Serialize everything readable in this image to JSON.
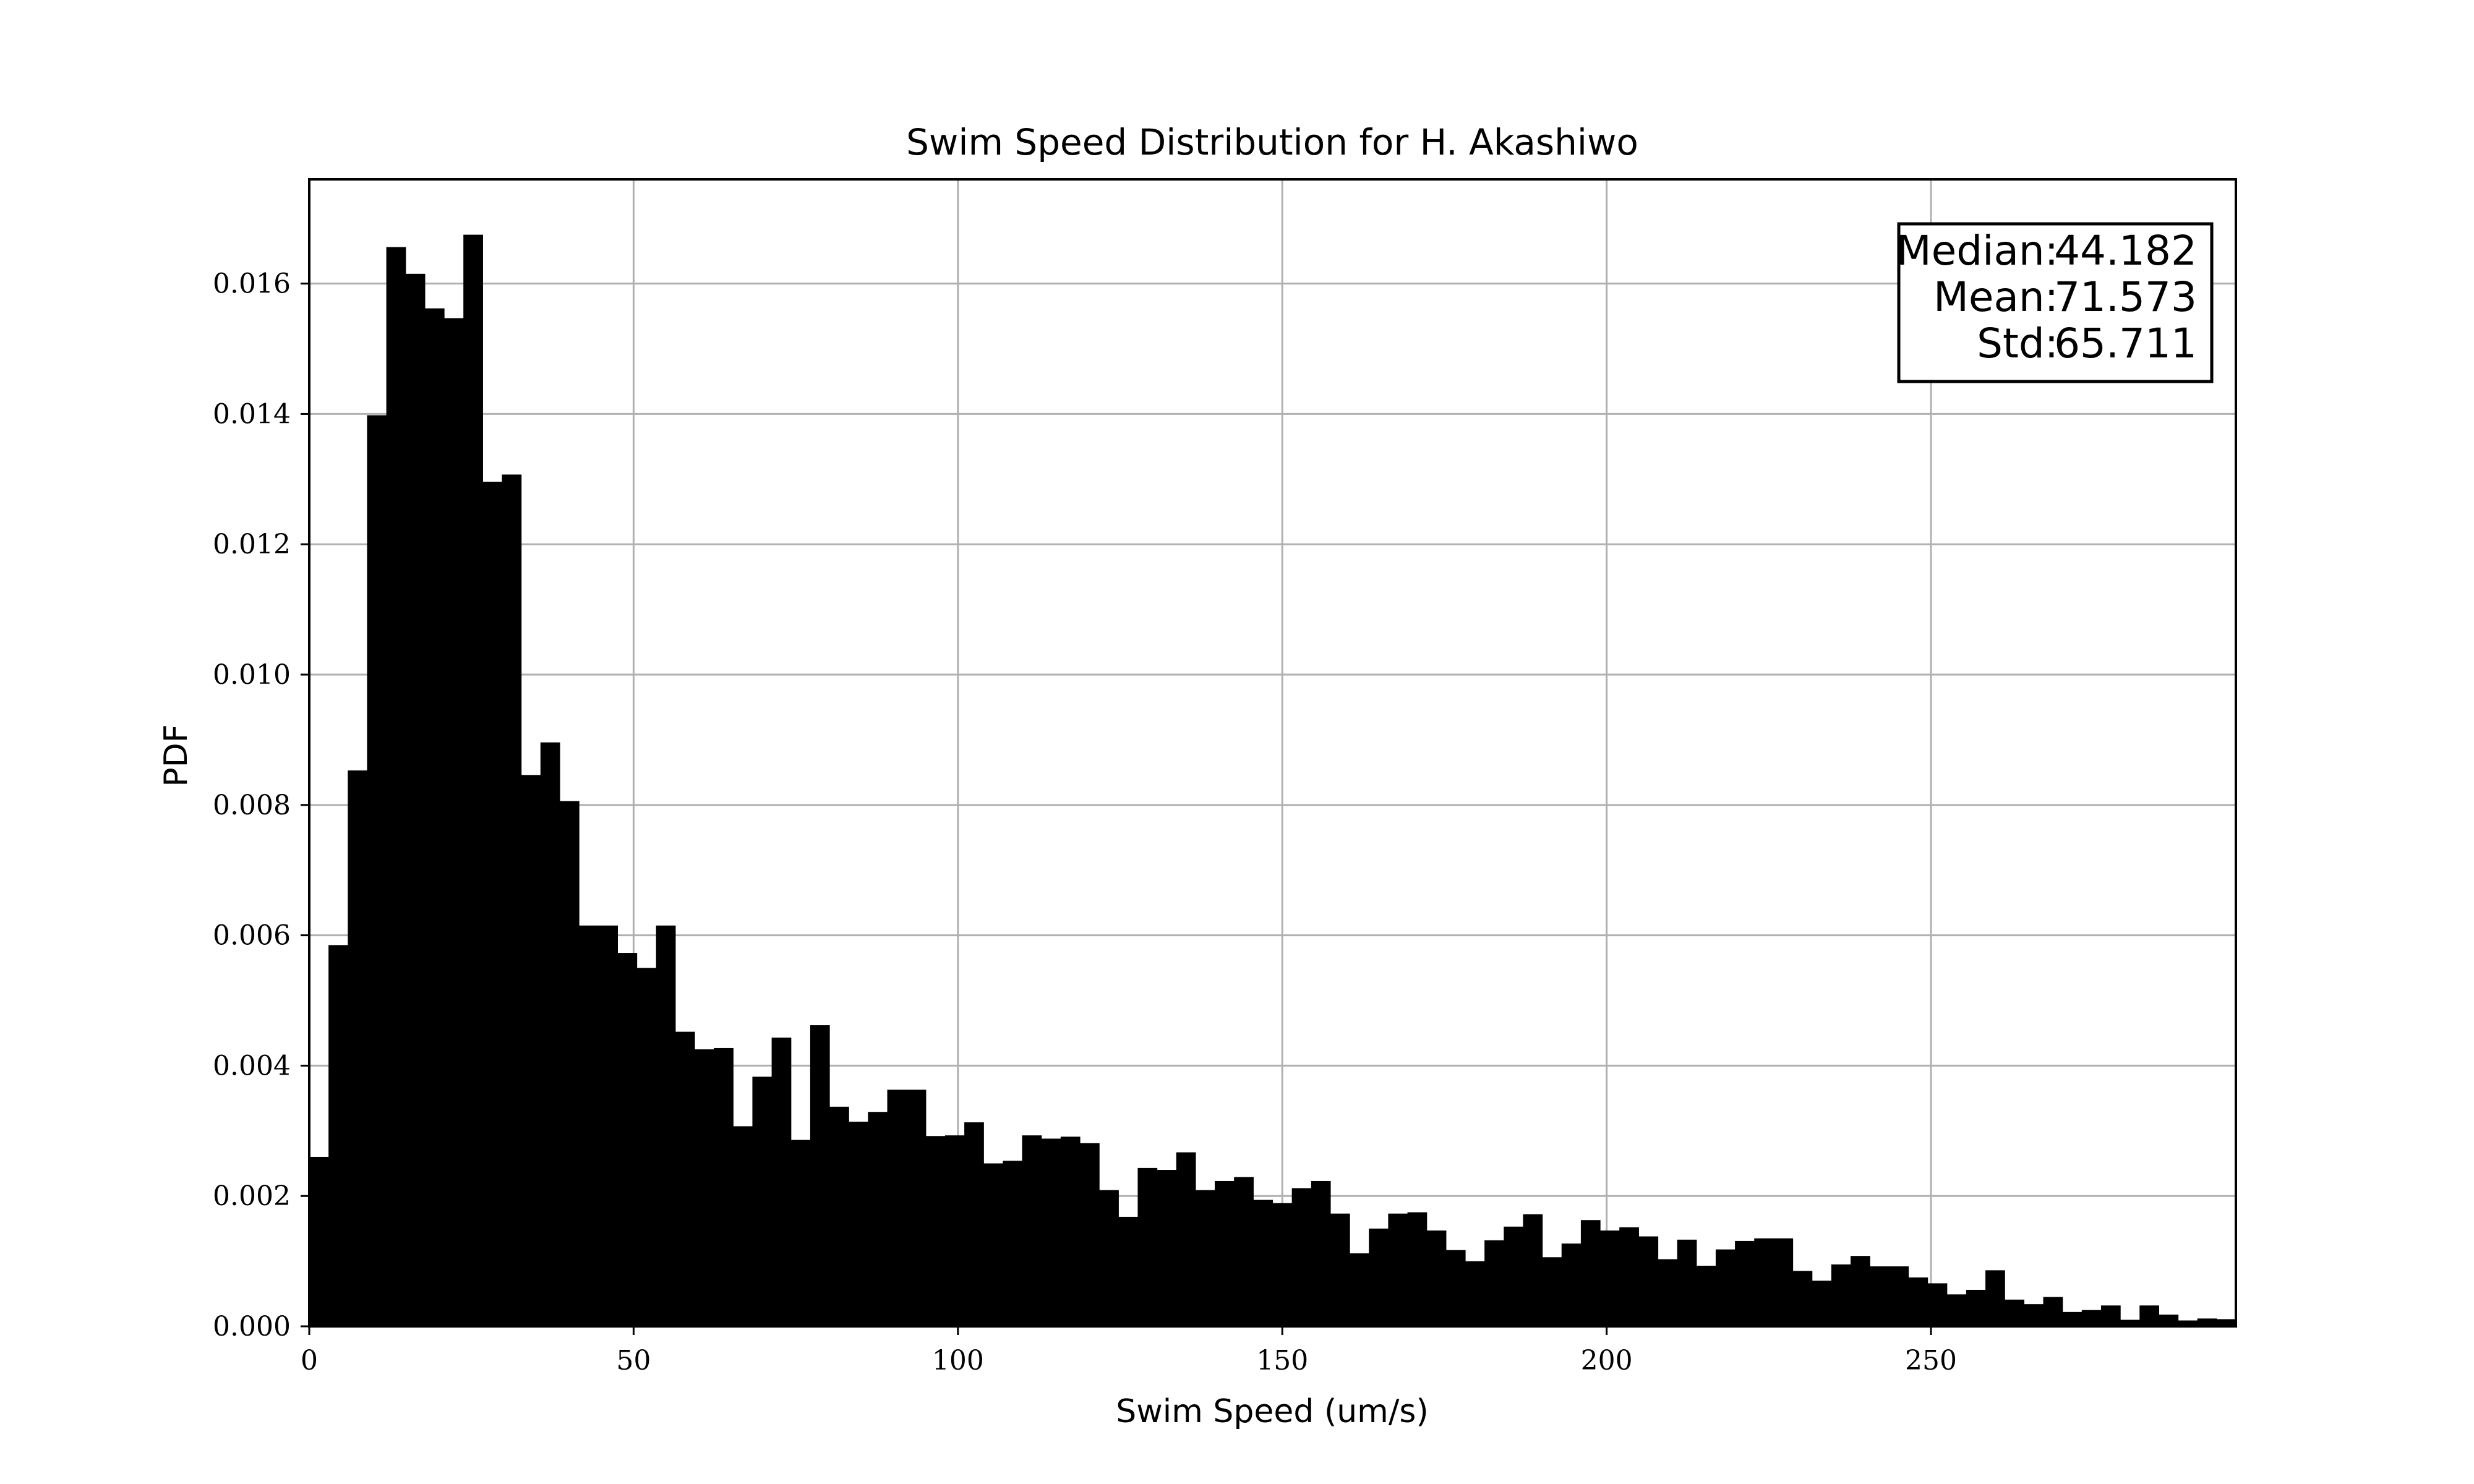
{
  "chart_data": {
    "type": "bar",
    "title": "Swim Speed Distribution for H. Akashiwo",
    "xlabel": "Swim Speed (um/s)",
    "ylabel": "PDF",
    "xlim": [
      0,
      297
    ],
    "ylim": [
      0,
      0.0176
    ],
    "xticks": [
      0,
      50,
      100,
      150,
      200,
      250
    ],
    "xtick_labels": [
      "0",
      "50",
      "100",
      "150",
      "200",
      "250"
    ],
    "yticks": [
      0,
      0.002,
      0.004,
      0.006,
      0.008,
      0.01,
      0.012,
      0.014,
      0.016
    ],
    "ytick_labels": [
      "0.000",
      "0.002",
      "0.004",
      "0.006",
      "0.008",
      "0.010",
      "0.012",
      "0.014",
      "0.016"
    ],
    "grid": true,
    "bar_color": "#000000",
    "grid_color": "#b0b0b0",
    "bin_width": 2.97,
    "bin_start": 0,
    "values": [
      0.0026,
      0.00585,
      0.00853,
      0.01398,
      0.01656,
      0.01615,
      0.01562,
      0.01547,
      0.01675,
      0.01296,
      0.01307,
      0.00846,
      0.00896,
      0.00806,
      0.00615,
      0.00615,
      0.00573,
      0.0055,
      0.00615,
      0.00452,
      0.00425,
      0.00427,
      0.00307,
      0.00383,
      0.00443,
      0.00286,
      0.00462,
      0.00337,
      0.00314,
      0.00329,
      0.00363,
      0.00363,
      0.00292,
      0.00293,
      0.00313,
      0.0025,
      0.00254,
      0.00293,
      0.00288,
      0.00291,
      0.00281,
      0.00209,
      0.00168,
      0.00243,
      0.0024,
      0.00267,
      0.00209,
      0.00223,
      0.00229,
      0.00194,
      0.00189,
      0.00212,
      0.00223,
      0.00173,
      0.00112,
      0.0015,
      0.00173,
      0.00175,
      0.00147,
      0.00117,
      0.001,
      0.00132,
      0.00153,
      0.00172,
      0.00106,
      0.00127,
      0.00163,
      0.00147,
      0.00152,
      0.00138,
      0.00103,
      0.00133,
      0.00093,
      0.00118,
      0.00131,
      0.00135,
      0.00135,
      0.00085,
      0.0007,
      0.00095,
      0.00108,
      0.00092,
      0.00092,
      0.00075,
      0.00066,
      0.00049,
      0.00056,
      0.00086,
      0.00041,
      0.00034,
      0.00045,
      0.00022,
      0.00025,
      0.00032,
      0.0001,
      0.00032,
      0.00018,
      9e-05,
      0.00012,
      0.00011
    ],
    "annotations": [
      {
        "label": "Median:",
        "value": "44.182"
      },
      {
        "label": "Mean:",
        "value": "71.573"
      },
      {
        "label": "Std:",
        "value": "65.711"
      }
    ]
  }
}
